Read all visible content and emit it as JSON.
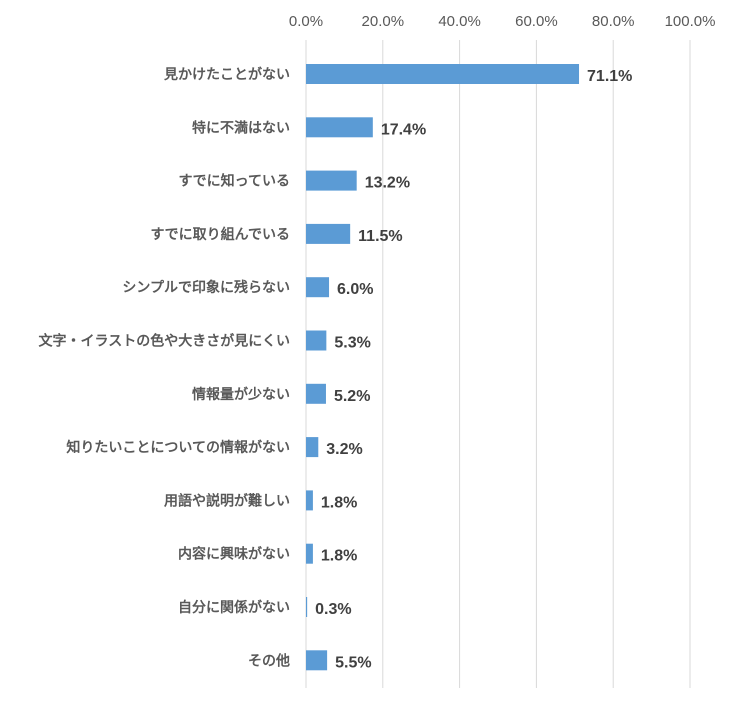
{
  "chart_data": {
    "type": "bar",
    "orientation": "horizontal",
    "categories": [
      "見かけたことがない",
      "特に不満はない",
      "すでに知っている",
      "すでに取り組んでいる",
      "シンプルで印象に残らない",
      "文字・イラストの色や大きさが見にくい",
      "情報量が少ない",
      "知りたいことについての情報がない",
      "用語や説明が難しい",
      "内容に興味がない",
      "自分に関係がない",
      "その他"
    ],
    "values": [
      71.1,
      17.4,
      13.2,
      11.5,
      6.0,
      5.3,
      5.2,
      3.2,
      1.8,
      1.8,
      0.3,
      5.5
    ],
    "data_labels": [
      "71.1%",
      "17.4%",
      "13.2%",
      "11.5%",
      "6.0%",
      "5.3%",
      "5.2%",
      "3.2%",
      "1.8%",
      "1.8%",
      "0.3%",
      "5.5%"
    ],
    "xlim": [
      0,
      100
    ],
    "x_ticks": [
      "0.0%",
      "20.0%",
      "40.0%",
      "60.0%",
      "80.0%",
      "100.0%"
    ],
    "x_axis_position": "top",
    "grid": true,
    "bar_color": "#5b9bd5",
    "title": "",
    "xlabel": "",
    "ylabel": ""
  }
}
